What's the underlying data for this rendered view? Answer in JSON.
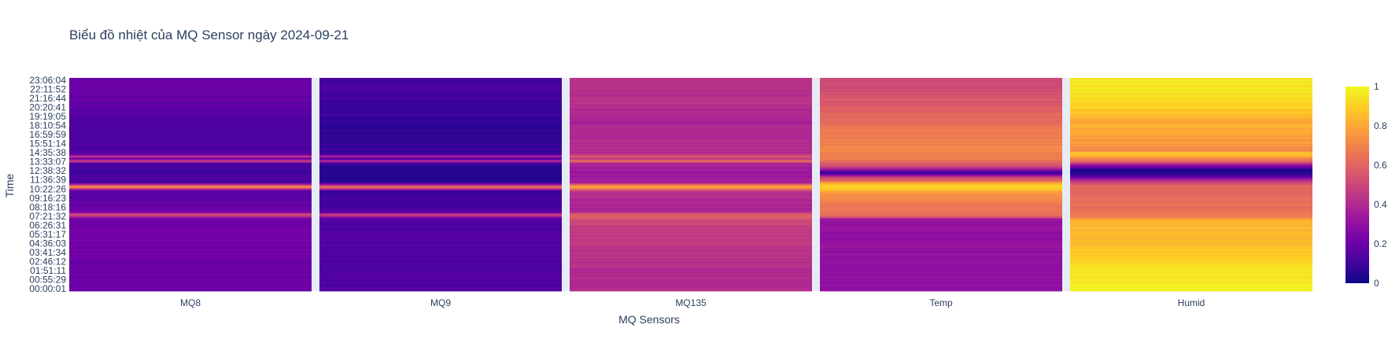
{
  "chart_data": {
    "type": "heatmap",
    "title": "Biểu đồ nhiệt của MQ Sensor ngày 2024-09-21",
    "xlabel": "MQ Sensors",
    "ylabel": "Time",
    "x": [
      "MQ8",
      "MQ9",
      "MQ135",
      "Temp",
      "Humid"
    ],
    "y_tick_labels": [
      "00:00:01",
      "00:55:29",
      "01:51:11",
      "02:46:12",
      "03:41:34",
      "04:36:03",
      "05:31:17",
      "06:26:31",
      "07:21:32",
      "08:18:16",
      "09:16:23",
      "10:22:26",
      "11:36:39",
      "12:38:32",
      "13:33:07",
      "14:35:38",
      "15:51:14",
      "16:59:59",
      "18:10:54",
      "19:19:05",
      "20:20:41",
      "21:16:44",
      "22:11:52",
      "23:06:04"
    ],
    "colorscale": {
      "name": "Plasma",
      "min": 0,
      "max": 1,
      "ticks": [
        "0",
        "0.2",
        "0.4",
        "0.6",
        "0.8",
        "1"
      ],
      "stops": [
        "#0d0887",
        "#46039f",
        "#7201a8",
        "#9c179e",
        "#bd3786",
        "#d8576b",
        "#ed7953",
        "#fb9f3a",
        "#fdca26",
        "#f0f921"
      ]
    },
    "profiles": {
      "MQ8": [
        [
          0.0,
          0.2
        ],
        [
          0.14,
          0.21
        ],
        [
          0.22,
          0.22
        ],
        [
          0.26,
          0.24
        ],
        [
          0.32,
          0.2
        ],
        [
          0.34,
          0.22
        ],
        [
          0.36,
          0.55
        ],
        [
          0.372,
          0.22
        ],
        [
          0.4,
          0.18
        ],
        [
          0.47,
          0.15
        ],
        [
          0.48,
          0.45
        ],
        [
          0.49,
          0.75
        ],
        [
          0.497,
          0.5
        ],
        [
          0.51,
          0.14
        ],
        [
          0.56,
          0.1
        ],
        [
          0.6,
          0.13
        ],
        [
          0.61,
          0.5
        ],
        [
          0.625,
          0.14
        ],
        [
          0.63,
          0.5
        ],
        [
          0.645,
          0.16
        ],
        [
          0.68,
          0.14
        ],
        [
          0.74,
          0.12
        ],
        [
          0.8,
          0.14
        ],
        [
          0.86,
          0.17
        ],
        [
          0.92,
          0.19
        ],
        [
          1.0,
          0.2
        ]
      ],
      "MQ9": [
        [
          0.0,
          0.13
        ],
        [
          0.14,
          0.14
        ],
        [
          0.26,
          0.14
        ],
        [
          0.34,
          0.13
        ],
        [
          0.36,
          0.5
        ],
        [
          0.372,
          0.14
        ],
        [
          0.4,
          0.11
        ],
        [
          0.47,
          0.09
        ],
        [
          0.48,
          0.4
        ],
        [
          0.49,
          0.7
        ],
        [
          0.497,
          0.45
        ],
        [
          0.51,
          0.07
        ],
        [
          0.56,
          0.05
        ],
        [
          0.6,
          0.07
        ],
        [
          0.61,
          0.45
        ],
        [
          0.625,
          0.08
        ],
        [
          0.63,
          0.45
        ],
        [
          0.645,
          0.1
        ],
        [
          0.68,
          0.08
        ],
        [
          0.74,
          0.06
        ],
        [
          0.8,
          0.07
        ],
        [
          0.86,
          0.09
        ],
        [
          0.92,
          0.11
        ],
        [
          1.0,
          0.12
        ]
      ],
      "MQ135": [
        [
          0.0,
          0.4
        ],
        [
          0.14,
          0.42
        ],
        [
          0.22,
          0.45
        ],
        [
          0.26,
          0.46
        ],
        [
          0.3,
          0.45
        ],
        [
          0.36,
          0.6
        ],
        [
          0.372,
          0.4
        ],
        [
          0.4,
          0.38
        ],
        [
          0.47,
          0.42
        ],
        [
          0.48,
          0.65
        ],
        [
          0.49,
          0.82
        ],
        [
          0.5,
          0.6
        ],
        [
          0.51,
          0.36
        ],
        [
          0.56,
          0.32
        ],
        [
          0.6,
          0.38
        ],
        [
          0.61,
          0.62
        ],
        [
          0.625,
          0.4
        ],
        [
          0.63,
          0.6
        ],
        [
          0.645,
          0.42
        ],
        [
          0.7,
          0.4
        ],
        [
          0.8,
          0.38
        ],
        [
          0.9,
          0.42
        ],
        [
          1.0,
          0.44
        ]
      ],
      "Temp": [
        [
          0.0,
          0.3
        ],
        [
          0.16,
          0.31
        ],
        [
          0.34,
          0.32
        ],
        [
          0.345,
          0.55
        ],
        [
          0.36,
          0.64
        ],
        [
          0.4,
          0.66
        ],
        [
          0.46,
          0.75
        ],
        [
          0.48,
          0.88
        ],
        [
          0.49,
          0.95
        ],
        [
          0.5,
          0.86
        ],
        [
          0.52,
          0.62
        ],
        [
          0.54,
          0.4
        ],
        [
          0.555,
          0.05
        ],
        [
          0.57,
          0.3
        ],
        [
          0.59,
          0.55
        ],
        [
          0.62,
          0.66
        ],
        [
          0.64,
          0.7
        ],
        [
          0.66,
          0.72
        ],
        [
          0.72,
          0.68
        ],
        [
          0.8,
          0.62
        ],
        [
          0.9,
          0.55
        ],
        [
          1.0,
          0.5
        ]
      ],
      "Humid": [
        [
          0.0,
          0.98
        ],
        [
          0.1,
          0.95
        ],
        [
          0.18,
          0.88
        ],
        [
          0.26,
          0.84
        ],
        [
          0.34,
          0.83
        ],
        [
          0.345,
          0.68
        ],
        [
          0.4,
          0.64
        ],
        [
          0.46,
          0.62
        ],
        [
          0.5,
          0.58
        ],
        [
          0.52,
          0.4
        ],
        [
          0.55,
          0.05
        ],
        [
          0.57,
          0.02
        ],
        [
          0.59,
          0.3
        ],
        [
          0.61,
          0.6
        ],
        [
          0.63,
          0.78
        ],
        [
          0.65,
          0.9
        ],
        [
          0.66,
          0.7
        ],
        [
          0.7,
          0.76
        ],
        [
          0.74,
          0.8
        ],
        [
          0.8,
          0.82
        ],
        [
          0.86,
          0.9
        ],
        [
          0.92,
          0.95
        ],
        [
          1.0,
          0.96
        ]
      ]
    }
  }
}
